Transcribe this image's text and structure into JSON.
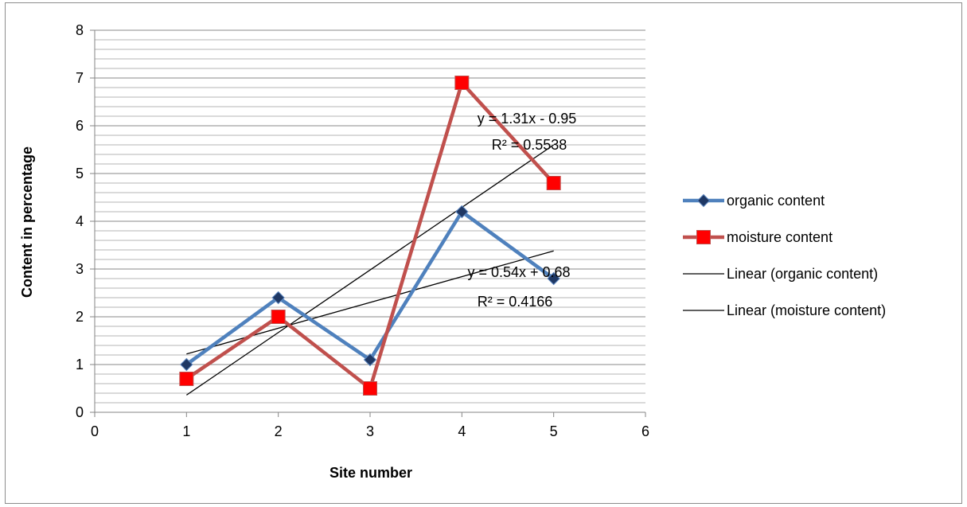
{
  "chart_data": {
    "type": "scatter",
    "title": "",
    "xlabel": "Site number",
    "ylabel": "Content in percentage",
    "xlim": [
      0,
      6
    ],
    "ylim": [
      0,
      8
    ],
    "x_ticks": [
      "0",
      "1",
      "2",
      "3",
      "4",
      "5",
      "6"
    ],
    "y_ticks": [
      "0",
      "1",
      "2",
      "3",
      "4",
      "5",
      "6",
      "7",
      "8"
    ],
    "grid": true,
    "legend_position": "right",
    "series": [
      {
        "name": "organic content",
        "x": [
          1,
          2,
          3,
          4,
          5
        ],
        "y": [
          1.0,
          2.4,
          1.1,
          4.2,
          2.8
        ],
        "color": "#4f81bd",
        "marker": "diamond",
        "marker_color": "#1f3864"
      },
      {
        "name": "moisture content",
        "x": [
          1,
          2,
          3,
          4,
          5
        ],
        "y": [
          0.7,
          2.0,
          0.5,
          6.9,
          4.8
        ],
        "color": "#c0504d",
        "marker": "square",
        "marker_color": "#ff0000"
      }
    ],
    "trendlines": [
      {
        "name": "Linear (organic content)",
        "slope": 0.54,
        "intercept": 0.68,
        "x_range": [
          1,
          5
        ],
        "equation": "y = 0.54x + 0.68",
        "r_squared": "R² = 0.4166",
        "color": "#000000"
      },
      {
        "name": "Linear (moisture content)",
        "slope": 1.31,
        "intercept": -0.95,
        "x_range": [
          1,
          5
        ],
        "equation": "y = 1.31x - 0.95",
        "r_squared": "R² = 0.5538",
        "color": "#000000"
      }
    ]
  }
}
